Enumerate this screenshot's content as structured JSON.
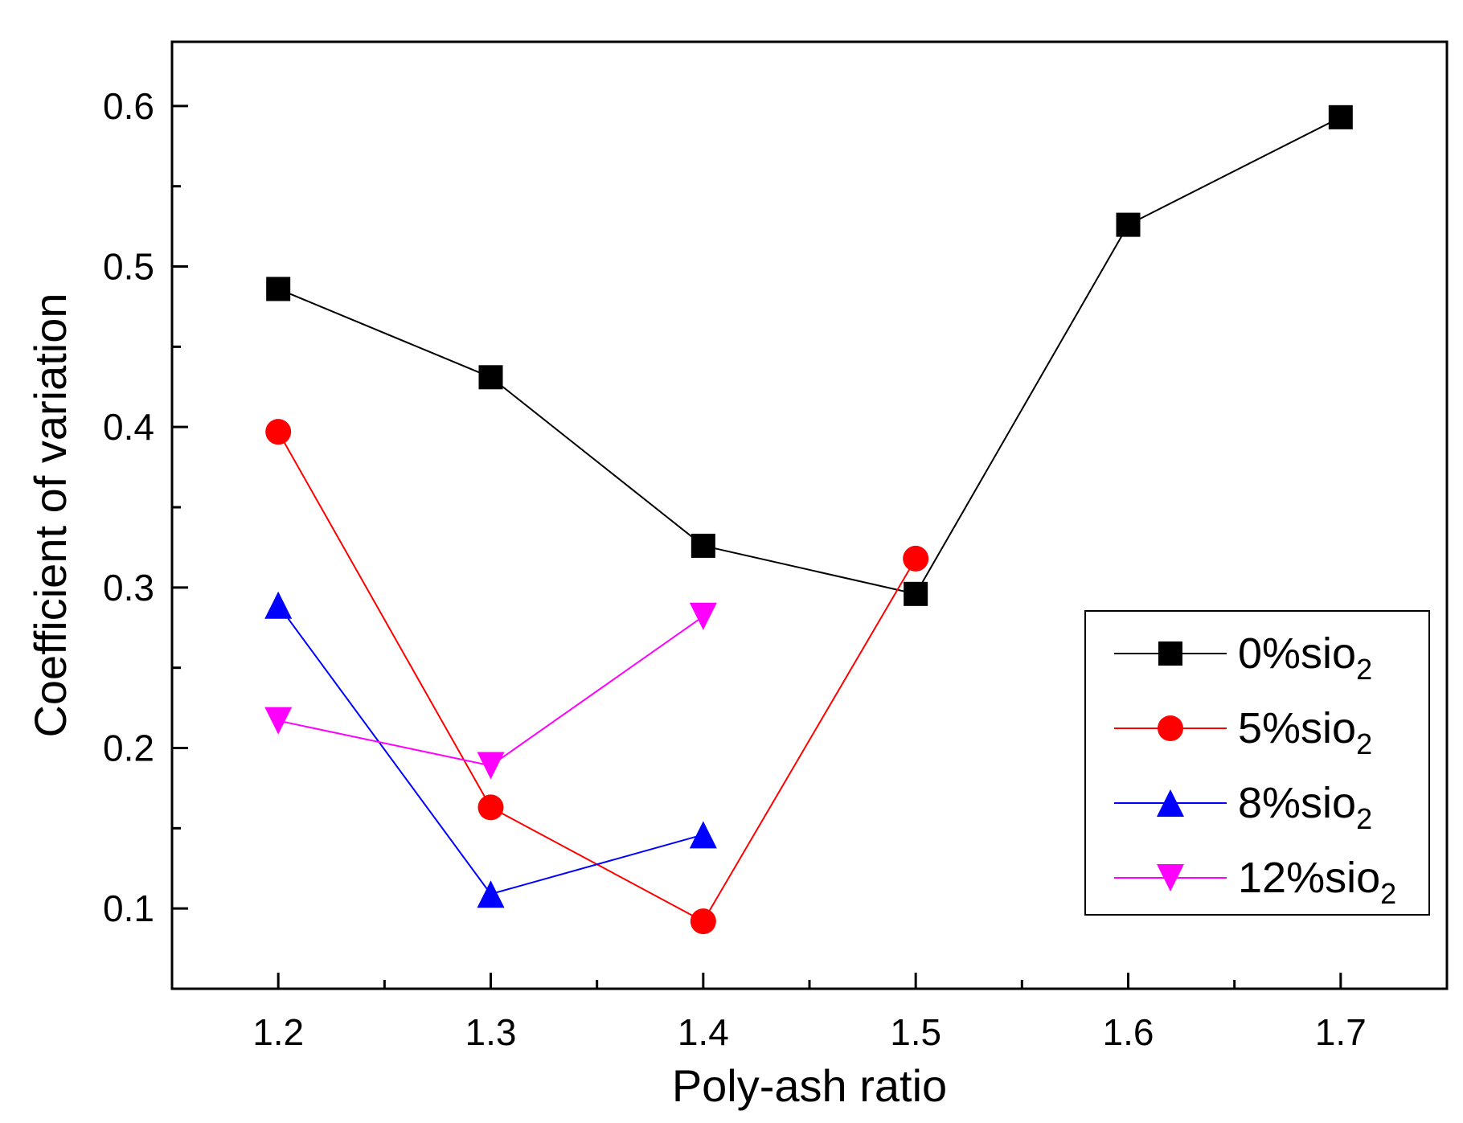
{
  "chart_data": {
    "type": "line",
    "title": "",
    "xlabel": "Poly-ash ratio",
    "ylabel": "Coefficient of variation",
    "xlim": [
      1.15,
      1.75
    ],
    "ylim": [
      0.05,
      0.64
    ],
    "xticks": [
      1.2,
      1.3,
      1.4,
      1.5,
      1.6,
      1.7
    ],
    "xtick_labels": [
      "1.2",
      "1.3",
      "1.4",
      "1.5",
      "1.6",
      "1.7"
    ],
    "yticks": [
      0.1,
      0.2,
      0.3,
      0.4,
      0.5,
      0.6
    ],
    "ytick_labels": [
      "0.1",
      "0.2",
      "0.3",
      "0.4",
      "0.5",
      "0.6"
    ],
    "grid": false,
    "legend_position": "right",
    "series": [
      {
        "name_main": "0%sio",
        "name_sub": "2",
        "color": "#000000",
        "marker": "square",
        "x": [
          1.2,
          1.3,
          1.4,
          1.5,
          1.6,
          1.7
        ],
        "y": [
          0.486,
          0.431,
          0.326,
          0.296,
          0.526,
          0.593
        ]
      },
      {
        "name_main": "5%sio",
        "name_sub": "2",
        "color": "#ff0000",
        "marker": "circle",
        "x": [
          1.2,
          1.3,
          1.4,
          1.5
        ],
        "y": [
          0.397,
          0.163,
          0.092,
          0.318
        ]
      },
      {
        "name_main": "8%sio",
        "name_sub": "2",
        "color": "#0000ff",
        "marker": "triangle-up",
        "x": [
          1.2,
          1.3,
          1.4
        ],
        "y": [
          0.289,
          0.109,
          0.146
        ]
      },
      {
        "name_main": "12%sio",
        "name_sub": "2",
        "color": "#ff00ff",
        "marker": "triangle-down",
        "x": [
          1.2,
          1.3,
          1.4
        ],
        "y": [
          0.217,
          0.189,
          0.282
        ]
      }
    ]
  }
}
